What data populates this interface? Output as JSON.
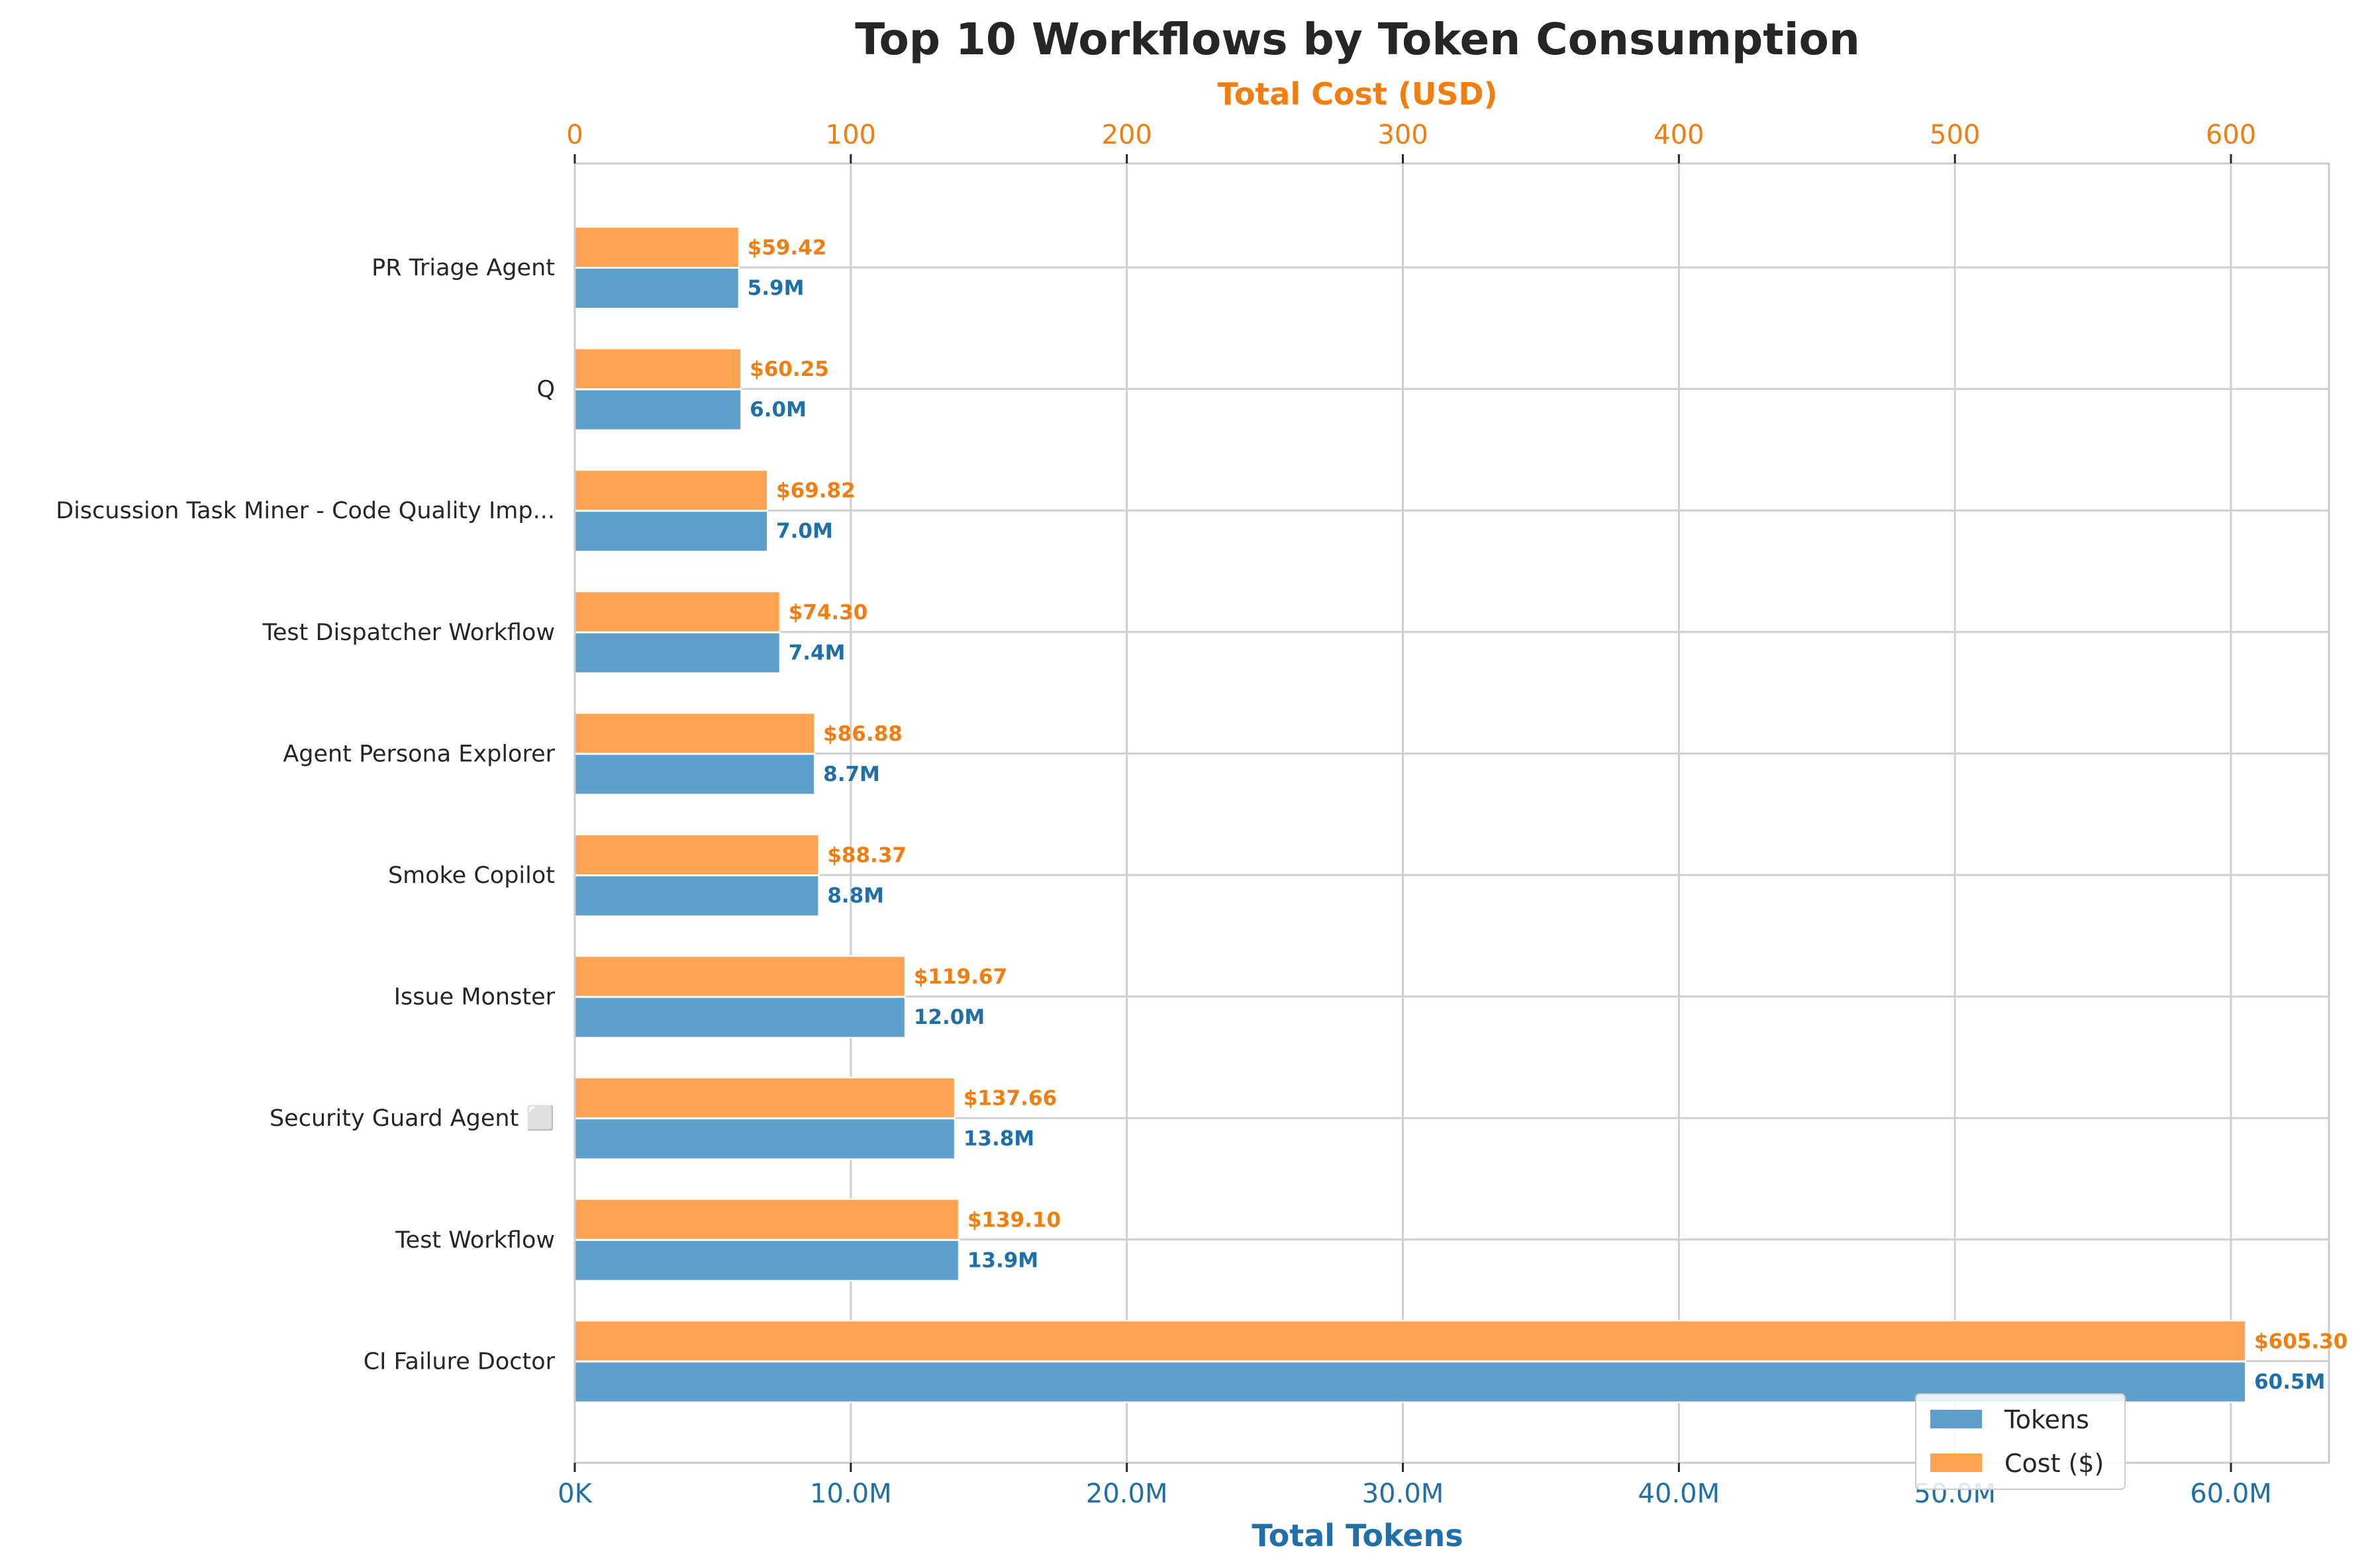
{
  "chart_data": {
    "type": "bar",
    "orientation": "horizontal",
    "title": "Top 10 Workflows by Token Consumption",
    "xlabel": "Total Tokens",
    "x2label": "Total Cost (USD)",
    "categories": [
      "PR Triage Agent",
      "Q",
      "Discussion Task Miner - Code Quality Imp...",
      "Test Dispatcher Workflow",
      "Agent Persona Explorer",
      "Smoke Copilot",
      "Issue Monster",
      "Security Guard Agent ⬜",
      "Test Workflow",
      "CI Failure Doctor"
    ],
    "series": [
      {
        "name": "Tokens",
        "axis": "bottom",
        "color": "#5f9fcc",
        "label_color": "#1f6fa8",
        "values": [
          5942000,
          6025000,
          6982000,
          7430000,
          8688000,
          8837000,
          11967000,
          13766000,
          13910000,
          60530000
        ],
        "labels": [
          "5.9M",
          "6.0M",
          "7.0M",
          "7.4M",
          "8.7M",
          "8.8M",
          "12.0M",
          "13.8M",
          "13.9M",
          "60.5M"
        ]
      },
      {
        "name": "Cost ($)",
        "axis": "top",
        "color": "#ffa352",
        "label_color": "#f07e10",
        "values": [
          59.42,
          60.25,
          69.82,
          74.3,
          86.88,
          88.37,
          119.67,
          137.66,
          139.1,
          605.3
        ],
        "labels": [
          "$59.42",
          "$60.25",
          "$69.82",
          "$74.30",
          "$86.88",
          "$88.37",
          "$119.67",
          "$137.66",
          "$139.10",
          "$605.30"
        ]
      }
    ],
    "xlim": [
      0,
      63550000
    ],
    "x2lim": [
      0,
      635.5
    ],
    "xticks": [
      0,
      10000000,
      20000000,
      30000000,
      40000000,
      50000000,
      60000000
    ],
    "xtick_labels": [
      "0K",
      "10.0M",
      "20.0M",
      "30.0M",
      "40.0M",
      "50.0M",
      "60.0M"
    ],
    "x2ticks": [
      0,
      100,
      200,
      300,
      400,
      500,
      600
    ],
    "x2tick_labels": [
      "0",
      "100",
      "200",
      "300",
      "400",
      "500",
      "600"
    ],
    "grid": true,
    "legend_position": "bottom-right"
  }
}
